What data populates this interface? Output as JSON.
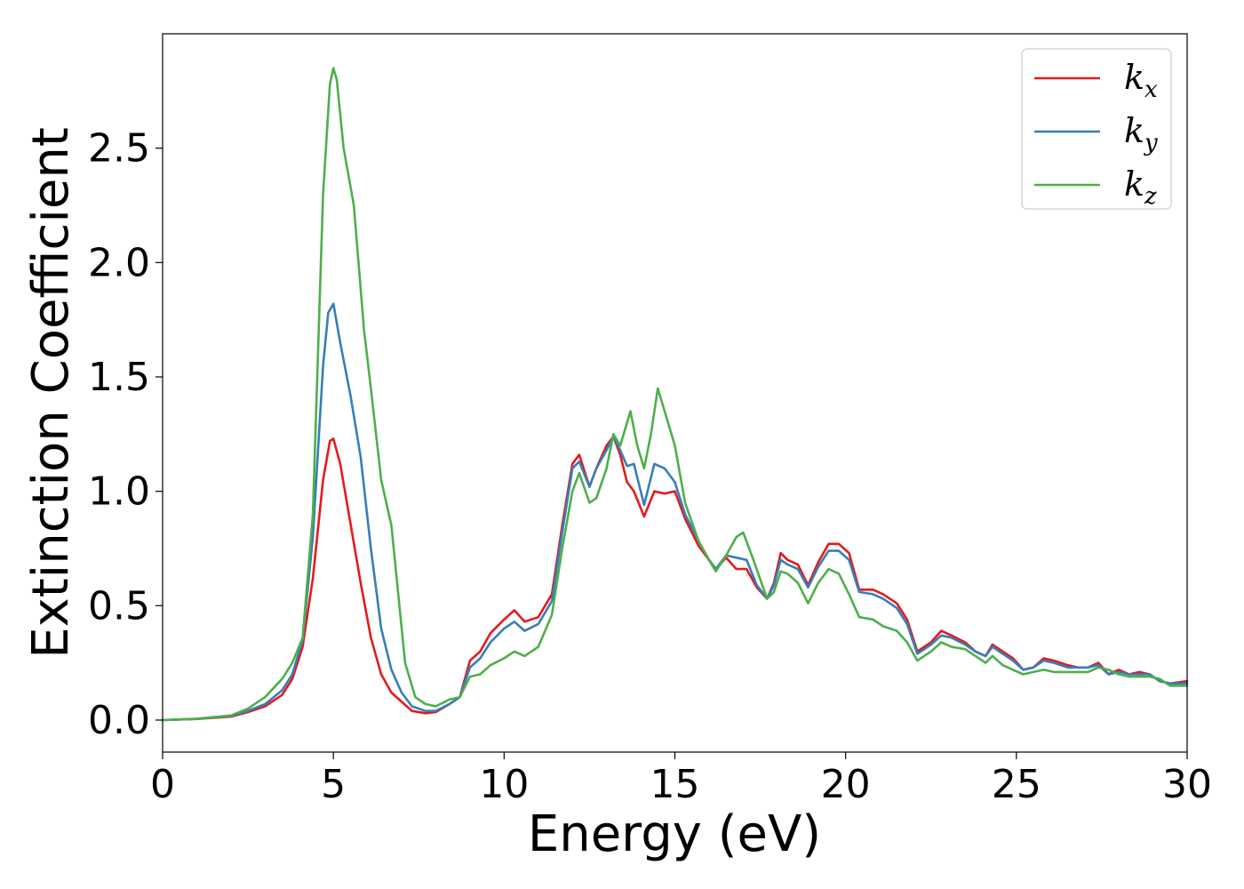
{
  "chart_data": {
    "type": "line",
    "xlabel": "Energy (eV)",
    "ylabel": "Extinction Coefficient",
    "xlim": [
      0,
      30
    ],
    "ylim": [
      -0.14,
      3.0
    ],
    "xticks": [
      0,
      5,
      10,
      15,
      20,
      25,
      30
    ],
    "yticks": [
      0.0,
      0.5,
      1.0,
      1.5,
      2.0,
      2.5
    ],
    "xtick_labels": [
      "0",
      "5",
      "10",
      "15",
      "20",
      "25",
      "30"
    ],
    "ytick_labels": [
      "0.0",
      "0.5",
      "1.0",
      "1.5",
      "2.0",
      "2.5"
    ],
    "grid": false,
    "legend_position": "top-right",
    "series": [
      {
        "name": "k_x",
        "label_main": "k",
        "label_sub": "x",
        "color": "#e41a1c",
        "x": [
          0,
          1,
          2,
          2.5,
          3,
          3.5,
          3.8,
          4.1,
          4.4,
          4.7,
          4.9,
          5.0,
          5.2,
          5.5,
          5.8,
          6.1,
          6.4,
          6.7,
          7.0,
          7.3,
          7.7,
          8.0,
          8.4,
          8.7,
          9.0,
          9.3,
          9.6,
          10.0,
          10.3,
          10.6,
          11.0,
          11.4,
          11.7,
          12.0,
          12.2,
          12.5,
          12.7,
          13.0,
          13.2,
          13.4,
          13.6,
          13.8,
          14.1,
          14.4,
          14.7,
          15.0,
          15.3,
          15.7,
          16.0,
          16.2,
          16.5,
          16.8,
          17.1,
          17.4,
          17.7,
          17.9,
          18.1,
          18.3,
          18.6,
          18.9,
          19.2,
          19.5,
          19.8,
          20.1,
          20.4,
          20.8,
          21.1,
          21.5,
          21.8,
          22.1,
          22.5,
          22.8,
          23.1,
          23.5,
          23.8,
          24.1,
          24.3,
          24.6,
          24.9,
          25.2,
          25.5,
          25.8,
          26.1,
          26.5,
          26.8,
          27.1,
          27.4,
          27.7,
          28.0,
          28.3,
          28.6,
          28.9,
          29.2,
          29.5,
          30.0
        ],
        "values": [
          0.0,
          0.005,
          0.015,
          0.035,
          0.06,
          0.11,
          0.18,
          0.32,
          0.62,
          1.05,
          1.22,
          1.23,
          1.12,
          0.86,
          0.6,
          0.36,
          0.2,
          0.12,
          0.08,
          0.04,
          0.03,
          0.035,
          0.07,
          0.1,
          0.26,
          0.3,
          0.38,
          0.44,
          0.48,
          0.43,
          0.45,
          0.55,
          0.85,
          1.12,
          1.16,
          1.02,
          1.1,
          1.2,
          1.24,
          1.16,
          1.04,
          1.0,
          0.89,
          1.0,
          0.99,
          1.0,
          0.88,
          0.76,
          0.7,
          0.66,
          0.71,
          0.66,
          0.66,
          0.58,
          0.53,
          0.6,
          0.73,
          0.7,
          0.68,
          0.59,
          0.69,
          0.77,
          0.77,
          0.73,
          0.57,
          0.57,
          0.55,
          0.51,
          0.44,
          0.3,
          0.34,
          0.39,
          0.37,
          0.34,
          0.3,
          0.28,
          0.33,
          0.3,
          0.27,
          0.22,
          0.23,
          0.27,
          0.26,
          0.24,
          0.23,
          0.23,
          0.25,
          0.2,
          0.22,
          0.2,
          0.21,
          0.2,
          0.17,
          0.16,
          0.17
        ]
      },
      {
        "name": "k_y",
        "label_main": "k",
        "label_sub": "y",
        "color": "#377eb8",
        "x": [
          0,
          1,
          2,
          2.5,
          3,
          3.5,
          3.8,
          4.1,
          4.4,
          4.7,
          4.85,
          5.0,
          5.2,
          5.5,
          5.8,
          6.1,
          6.4,
          6.7,
          7.0,
          7.3,
          7.7,
          8.0,
          8.4,
          8.7,
          9.0,
          9.3,
          9.6,
          10.0,
          10.3,
          10.6,
          11.0,
          11.4,
          11.7,
          12.0,
          12.2,
          12.5,
          12.7,
          13.0,
          13.2,
          13.4,
          13.6,
          13.8,
          14.1,
          14.4,
          14.7,
          15.0,
          15.3,
          15.7,
          16.0,
          16.2,
          16.5,
          16.8,
          17.1,
          17.4,
          17.7,
          17.9,
          18.1,
          18.3,
          18.6,
          18.9,
          19.2,
          19.5,
          19.8,
          20.1,
          20.4,
          20.8,
          21.1,
          21.5,
          21.8,
          22.1,
          22.5,
          22.8,
          23.1,
          23.5,
          23.8,
          24.1,
          24.3,
          24.6,
          24.9,
          25.2,
          25.5,
          25.8,
          26.1,
          26.5,
          26.8,
          27.1,
          27.4,
          27.7,
          28.0,
          28.3,
          28.6,
          28.9,
          29.2,
          29.5,
          30.0
        ],
        "values": [
          0.0,
          0.005,
          0.018,
          0.04,
          0.07,
          0.13,
          0.2,
          0.35,
          0.8,
          1.55,
          1.78,
          1.82,
          1.65,
          1.42,
          1.15,
          0.75,
          0.4,
          0.22,
          0.12,
          0.06,
          0.04,
          0.04,
          0.07,
          0.1,
          0.23,
          0.27,
          0.34,
          0.4,
          0.43,
          0.39,
          0.42,
          0.52,
          0.82,
          1.1,
          1.13,
          1.02,
          1.1,
          1.18,
          1.24,
          1.18,
          1.11,
          1.12,
          0.94,
          1.12,
          1.1,
          1.04,
          0.9,
          0.78,
          0.7,
          0.66,
          0.72,
          0.71,
          0.7,
          0.59,
          0.53,
          0.59,
          0.7,
          0.68,
          0.66,
          0.58,
          0.67,
          0.74,
          0.74,
          0.7,
          0.56,
          0.55,
          0.53,
          0.49,
          0.42,
          0.29,
          0.33,
          0.37,
          0.36,
          0.33,
          0.3,
          0.28,
          0.32,
          0.29,
          0.26,
          0.22,
          0.23,
          0.26,
          0.25,
          0.23,
          0.23,
          0.23,
          0.24,
          0.2,
          0.21,
          0.2,
          0.2,
          0.2,
          0.17,
          0.16,
          0.16
        ]
      },
      {
        "name": "k_z",
        "label_main": "k",
        "label_sub": "z",
        "color": "#4daf4a",
        "x": [
          0,
          1,
          2,
          2.5,
          3,
          3.5,
          3.8,
          4.1,
          4.4,
          4.7,
          4.9,
          5.0,
          5.1,
          5.3,
          5.6,
          5.9,
          6.1,
          6.4,
          6.7,
          6.9,
          7.1,
          7.4,
          7.7,
          8.0,
          8.4,
          8.7,
          9.0,
          9.3,
          9.6,
          10.0,
          10.3,
          10.6,
          11.0,
          11.4,
          11.7,
          12.0,
          12.2,
          12.5,
          12.7,
          13.0,
          13.2,
          13.4,
          13.7,
          13.9,
          14.1,
          14.3,
          14.5,
          14.7,
          15.0,
          15.3,
          15.7,
          16.0,
          16.2,
          16.5,
          16.8,
          17.0,
          17.3,
          17.7,
          17.9,
          18.1,
          18.3,
          18.6,
          18.9,
          19.2,
          19.5,
          19.8,
          20.1,
          20.4,
          20.8,
          21.1,
          21.5,
          21.8,
          22.1,
          22.5,
          22.8,
          23.1,
          23.5,
          23.8,
          24.1,
          24.3,
          24.6,
          24.9,
          25.2,
          25.5,
          25.8,
          26.1,
          26.5,
          26.8,
          27.1,
          27.4,
          27.7,
          28.0,
          28.3,
          28.6,
          28.9,
          29.2,
          29.5,
          30.0
        ],
        "values": [
          0.0,
          0.006,
          0.02,
          0.05,
          0.1,
          0.18,
          0.25,
          0.36,
          0.9,
          2.3,
          2.78,
          2.85,
          2.8,
          2.5,
          2.25,
          1.7,
          1.45,
          1.05,
          0.85,
          0.55,
          0.25,
          0.1,
          0.07,
          0.06,
          0.09,
          0.1,
          0.19,
          0.2,
          0.24,
          0.27,
          0.3,
          0.28,
          0.32,
          0.46,
          0.75,
          1.0,
          1.08,
          0.95,
          0.97,
          1.1,
          1.25,
          1.2,
          1.35,
          1.2,
          1.1,
          1.25,
          1.45,
          1.35,
          1.2,
          0.95,
          0.78,
          0.7,
          0.65,
          0.72,
          0.8,
          0.82,
          0.7,
          0.53,
          0.56,
          0.65,
          0.64,
          0.6,
          0.51,
          0.6,
          0.66,
          0.64,
          0.55,
          0.45,
          0.44,
          0.41,
          0.39,
          0.34,
          0.26,
          0.3,
          0.34,
          0.32,
          0.31,
          0.28,
          0.25,
          0.28,
          0.24,
          0.22,
          0.2,
          0.21,
          0.22,
          0.21,
          0.21,
          0.21,
          0.21,
          0.23,
          0.22,
          0.2,
          0.19,
          0.19,
          0.19,
          0.18,
          0.15,
          0.15
        ]
      }
    ]
  }
}
